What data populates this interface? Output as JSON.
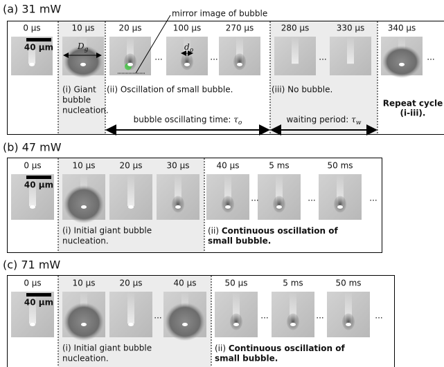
{
  "panels": [
    {
      "title": "(a) 31 mW",
      "scale_bar": "40 μm",
      "ellipsis": "...",
      "frames": [
        "0 μs",
        "10 μs",
        "20 μs",
        "100 μs",
        "270 μs",
        "280 μs",
        "330 μs",
        "340 μs"
      ],
      "captions": [
        [
          "(i) Giant",
          "bubble",
          "nucleation."
        ],
        [
          "(ii) Oscillation of small bubble."
        ],
        [
          "(iii) No bubble."
        ]
      ],
      "repeat": [
        "Repeat cycle",
        "(i-iii)."
      ],
      "annotation": "mirror image of bubble",
      "giant_diameter": {
        "symbol": "D",
        "sub": "g"
      },
      "small_diameter": {
        "symbol": "d",
        "sub": "o"
      },
      "periods": [
        {
          "text": "bubble oscillating time: ",
          "symbol": "τ",
          "sub": "o"
        },
        {
          "text": "waiting period: ",
          "symbol": "τ",
          "sub": "w"
        }
      ]
    },
    {
      "title": "(b) 47 mW",
      "scale_bar": "40 μm",
      "ellipsis": "...",
      "frames": [
        "0 μs",
        "10 μs",
        "20 μs",
        "30 μs",
        "40 μs",
        "5 ms",
        "50 ms"
      ],
      "caption_initial": [
        "(i) Initial giant bubble",
        "nucleation."
      ],
      "caption_continuous": {
        "prefix": "(ii) ",
        "lines": [
          "Continuous oscillation of",
          "small bubble."
        ]
      }
    },
    {
      "title": "(c) 71 mW",
      "scale_bar": "40 μm",
      "ellipsis": "...",
      "frames": [
        "0 μs",
        "10 μs",
        "20 μs",
        "40 μs",
        "50 μs",
        "5 ms",
        "50 ms"
      ],
      "caption_initial": [
        "(i) Initial giant bubble",
        "nucleation."
      ],
      "caption_continuous": {
        "prefix": "(ii) ",
        "lines": [
          "Continuous oscillation of",
          "small bubble."
        ]
      }
    }
  ]
}
